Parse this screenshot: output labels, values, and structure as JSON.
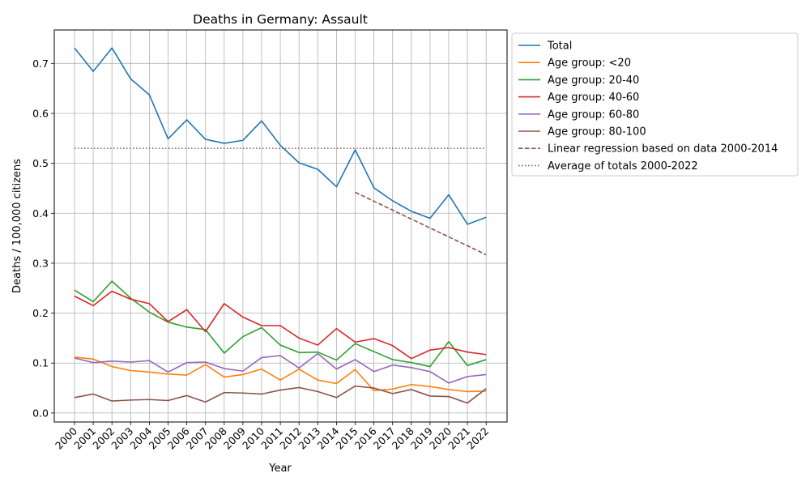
{
  "chart_data": {
    "type": "line",
    "title": "Deaths in Germany: Assault",
    "xlabel": "Year",
    "ylabel": "Deaths / 100,000 citizens",
    "ylim": [
      -0.018,
      0.767
    ],
    "yticks": [
      0.0,
      0.1,
      0.2,
      0.3,
      0.4,
      0.5,
      0.6,
      0.7
    ],
    "ytick_labels": [
      "0.0",
      "0.1",
      "0.2",
      "0.3",
      "0.4",
      "0.5",
      "0.6",
      "0.7"
    ],
    "grid": true,
    "legend_position": "outside-top-right",
    "categories": [
      "2000",
      "2001",
      "2002",
      "2003",
      "2004",
      "2005",
      "2006",
      "2007",
      "2008",
      "2009",
      "2010",
      "2011",
      "2012",
      "2013",
      "2014",
      "2015",
      "2016",
      "2017",
      "2018",
      "2019",
      "2020",
      "2021",
      "2022"
    ],
    "series": [
      {
        "name": "Total",
        "color": "#1f77b4",
        "style": "solid",
        "values": [
          0.731,
          0.684,
          0.731,
          0.669,
          0.637,
          0.549,
          0.587,
          0.548,
          0.54,
          0.546,
          0.585,
          0.536,
          0.501,
          0.488,
          0.453,
          0.527,
          0.451,
          0.425,
          0.404,
          0.39,
          0.437,
          0.378,
          0.392
        ]
      },
      {
        "name": "Age group: <20",
        "color": "#ff7f0e",
        "style": "solid",
        "values": [
          0.112,
          0.108,
          0.093,
          0.085,
          0.082,
          0.078,
          0.076,
          0.097,
          0.072,
          0.077,
          0.088,
          0.066,
          0.088,
          0.066,
          0.059,
          0.087,
          0.045,
          0.048,
          0.057,
          0.053,
          0.047,
          0.043,
          0.044
        ]
      },
      {
        "name": "Age group: 20-40",
        "color": "#2ca02c",
        "style": "solid",
        "values": [
          0.246,
          0.223,
          0.264,
          0.23,
          0.202,
          0.182,
          0.172,
          0.167,
          0.12,
          0.153,
          0.171,
          0.136,
          0.121,
          0.122,
          0.106,
          0.139,
          0.123,
          0.107,
          0.101,
          0.093,
          0.143,
          0.095,
          0.107
        ]
      },
      {
        "name": "Age group: 40-60",
        "color": "#d62728",
        "style": "solid",
        "values": [
          0.234,
          0.215,
          0.244,
          0.228,
          0.219,
          0.183,
          0.207,
          0.163,
          0.219,
          0.192,
          0.175,
          0.175,
          0.15,
          0.136,
          0.169,
          0.142,
          0.149,
          0.135,
          0.109,
          0.126,
          0.131,
          0.122,
          0.117
        ]
      },
      {
        "name": "Age group: 60-80",
        "color": "#9467bd",
        "style": "solid",
        "values": [
          0.11,
          0.101,
          0.104,
          0.102,
          0.105,
          0.082,
          0.101,
          0.102,
          0.089,
          0.084,
          0.111,
          0.115,
          0.09,
          0.119,
          0.088,
          0.107,
          0.083,
          0.096,
          0.091,
          0.083,
          0.06,
          0.073,
          0.077
        ]
      },
      {
        "name": "Age group: 80-100",
        "color": "#8c564b",
        "style": "solid",
        "values": [
          0.031,
          0.038,
          0.024,
          0.026,
          0.027,
          0.025,
          0.035,
          0.022,
          0.041,
          0.04,
          0.038,
          0.046,
          0.051,
          0.043,
          0.031,
          0.054,
          0.05,
          0.039,
          0.047,
          0.034,
          0.033,
          0.02,
          0.049
        ]
      },
      {
        "name": "Linear regression based on data 2000-2014",
        "color": "#8c564b",
        "style": "dashed",
        "x_start": "2015",
        "x_end": "2022",
        "y_start": 0.442,
        "y_end": 0.317
      },
      {
        "name": "Average of totals 2000-2022",
        "color": "#8c564b",
        "style": "dotted",
        "x_start": "2000",
        "x_end": "2022",
        "value": 0.53
      }
    ]
  }
}
